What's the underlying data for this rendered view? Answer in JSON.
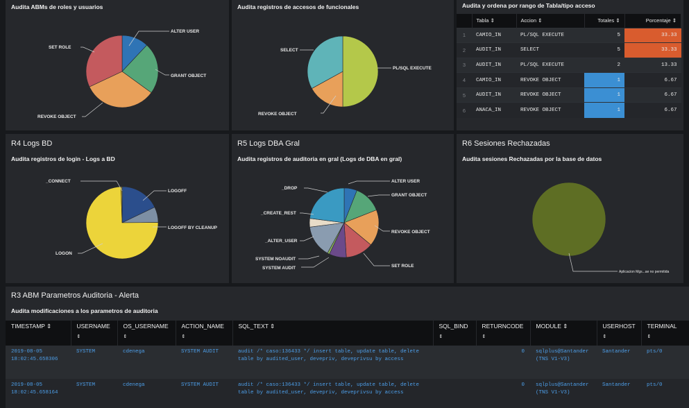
{
  "panel_top1": {
    "subtitle": "Audita ABMs de roles y usuarios"
  },
  "panel_top2": {
    "subtitle": "Audita registros de accesos de funcionales"
  },
  "panel_top3": {
    "subtitle": "Audita y ordena por rango de Tabla/tipo acceso",
    "columns": [
      "Tabla ⇕",
      "Accion ⇕",
      "Totales ⇕",
      "Porcentaje ⇕"
    ],
    "rows": [
      {
        "idx": "1",
        "tabla": "CAMIO_IN",
        "accion": "PL/SQL EXECUTE",
        "totales": "5",
        "porcentaje": "33.33"
      },
      {
        "idx": "2",
        "tabla": "AUDIT_IN",
        "accion": "SELECT",
        "totales": "5",
        "porcentaje": "33.33"
      },
      {
        "idx": "3",
        "tabla": "AUDIT_IN",
        "accion": "PL/SQL EXECUTE",
        "totales": "2",
        "porcentaje": "13.33"
      },
      {
        "idx": "4",
        "tabla": "CAMIO_IN",
        "accion": "REVOKE OBJECT",
        "totales": "1",
        "porcentaje": "6.67"
      },
      {
        "idx": "5",
        "tabla": "AUDIT_IN",
        "accion": "REVOKE OBJECT",
        "totales": "1",
        "porcentaje": "6.67"
      },
      {
        "idx": "6",
        "tabla": "ANACA_IN",
        "accion": "REVOKE OBJECT",
        "totales": "1",
        "porcentaje": "6.67"
      }
    ]
  },
  "panel_r4": {
    "title": "R4 Logs BD",
    "subtitle": "Audita registros de login - Logs a BD"
  },
  "panel_r5": {
    "title": "R5 Logs DBA Gral",
    "subtitle": "Audita registros de auditoria en gral (Logs de DBA en gral)"
  },
  "panel_r6": {
    "title": "R6 Sesiones Rechazadas",
    "subtitle": "Audita sesiones Rechazadas por la base de datos"
  },
  "panel_r3": {
    "title": "R3 ABM Parametros Auditoria - Alerta",
    "subtitle": "Audita modificaciones a los parametros de auditoria",
    "columns": [
      {
        "name": "TIMESTAMP ⇕",
        "arrow": ""
      },
      {
        "name": "USERNAME",
        "arrow": "⇕"
      },
      {
        "name": "OS_USERNAME",
        "arrow": "⇕"
      },
      {
        "name": "ACTION_NAME",
        "arrow": "⇕"
      },
      {
        "name": "SQL_TEXT ⇕",
        "arrow": ""
      },
      {
        "name": "SQL_BIND",
        "arrow": "⇕"
      },
      {
        "name": "RETURNCODE",
        "arrow": "⇕"
      },
      {
        "name": "MODULE ⇕",
        "arrow": ""
      },
      {
        "name": "USERHOST",
        "arrow": "⇕"
      },
      {
        "name": "TERMINAL",
        "arrow": "⇕"
      }
    ],
    "rows": [
      {
        "timestamp": "2019-08-05 18:02:45.658306",
        "username": "SYSTEM",
        "os_username": "cdenega",
        "action_name": "SYSTEM AUDIT",
        "sql_text": "audit /* caso:136433 */ insert table, update table, delete table by audited_user, devepriv, deveprivsu by access",
        "sql_bind": "",
        "returncode": "0",
        "module": "sqlplus@Santander (TNS V1-V3)",
        "userhost": "Santander",
        "terminal": "pts/0"
      },
      {
        "timestamp": "2019-08-05 18:02:45.658164",
        "username": "SYSTEM",
        "os_username": "cdenega",
        "action_name": "SYSTEM AUDIT",
        "sql_text": "audit /* caso:136433 */ insert table, update table, delete table by audited_user, devepriv, deveprivsu by access",
        "sql_bind": "",
        "returncode": "0",
        "module": "sqlplus@Santander (TNS V1-V3)",
        "userhost": "Santander",
        "terminal": "pts/0"
      }
    ]
  },
  "chart_data": [
    {
      "type": "pie",
      "title": "Audita ABMs de roles y usuarios",
      "slices": [
        {
          "label": "ALTER USER",
          "value": 12,
          "color": "#2f74b5"
        },
        {
          "label": "GRANT OBJECT",
          "value": 23,
          "color": "#56a678"
        },
        {
          "label": "REVOKE OBJECT",
          "value": 33,
          "color": "#e8a05a"
        },
        {
          "label": "SET ROLE",
          "value": 32,
          "color": "#c45a5e"
        }
      ]
    },
    {
      "type": "pie",
      "title": "Audita registros de accesos de funcionales",
      "slices": [
        {
          "label": "PL/SQL EXECUTE",
          "value": 50,
          "color": "#b4c84a"
        },
        {
          "label": "REVOKE OBJECT",
          "value": 17,
          "color": "#e8a05a"
        },
        {
          "label": "SELECT",
          "value": 33,
          "color": "#5fb4b8"
        }
      ]
    },
    {
      "type": "pie",
      "title": "Audita registros de login - Logs a BD",
      "slices": [
        {
          "label": "LOGOFF",
          "value": 18,
          "color": "#2b4e8c"
        },
        {
          "label": "LOGOFF BY CLEANUP",
          "value": 7,
          "color": "#7d8fa4"
        },
        {
          "label": "LOGON",
          "value": 75,
          "color": "#ecd43a"
        },
        {
          "label": "_CONNECT",
          "value": 0.5,
          "color": "#c9b43a"
        }
      ]
    },
    {
      "type": "pie",
      "title": "Audita registros de auditoria en gral (Logs de DBA en gral)",
      "slices": [
        {
          "label": "ALTER USER",
          "value": 6,
          "color": "#2f74b5"
        },
        {
          "label": "GRANT OBJECT",
          "value": 13,
          "color": "#56a678"
        },
        {
          "label": "REVOKE OBJECT",
          "value": 17,
          "color": "#e8a05a"
        },
        {
          "label": "SET ROLE",
          "value": 13,
          "color": "#c45a5e"
        },
        {
          "label": "SYSTEM AUDIT",
          "value": 8,
          "color": "#6b4a8a"
        },
        {
          "label": "SYSTEM NOAUDIT",
          "value": 1,
          "color": "#8bb35a"
        },
        {
          "label": "_ALTER_USER",
          "value": 15,
          "color": "#8a9cb0"
        },
        {
          "label": "_CREATE_REST",
          "value": 4,
          "color": "#e8dcc8"
        },
        {
          "label": "_DROP",
          "value": 23,
          "color": "#3a9ac2"
        }
      ]
    },
    {
      "type": "pie",
      "title": "Audita sesiones Rechazadas por la base de datos",
      "slices": [
        {
          "label": "Aplicacion Mgs...ae no permitida",
          "value": 100,
          "color": "#5e6e24"
        }
      ]
    }
  ]
}
